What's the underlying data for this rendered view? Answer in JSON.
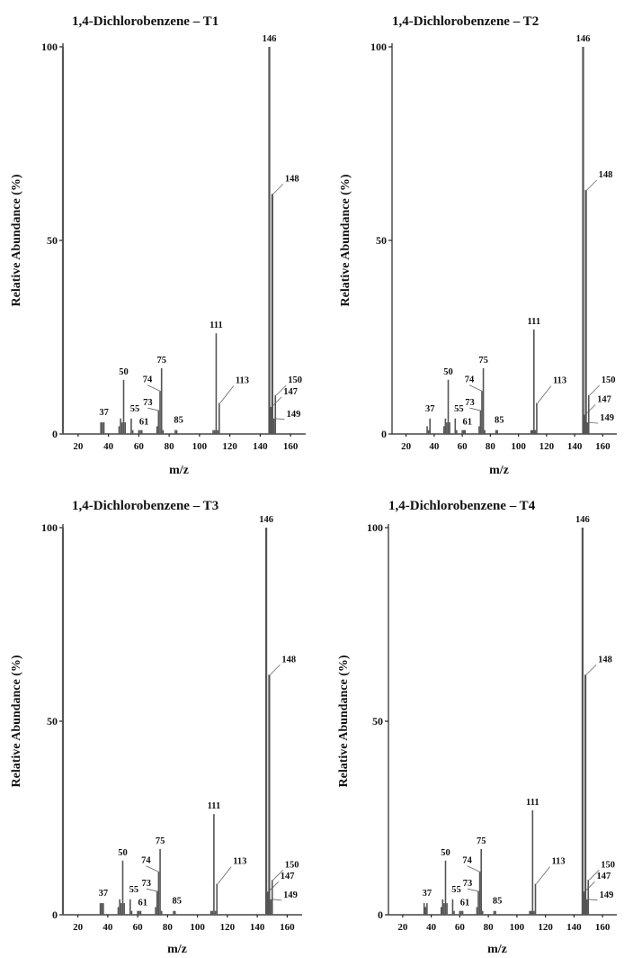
{
  "figure": {
    "panels": [
      {
        "id": "T1",
        "title": "1,4-Dichlorobenzene – T1"
      },
      {
        "id": "T2",
        "title": "1,4-Dichlorobenzene – T2"
      },
      {
        "id": "T3",
        "title": "1,4-Dichlorobenzene – T3"
      },
      {
        "id": "T4",
        "title": "1,4-Dichlorobenzene – T4"
      }
    ]
  },
  "chart_data": [
    {
      "type": "bar",
      "title": "1,4-Dichlorobenzene – T1",
      "xlabel": "m/z",
      "ylabel": "Relative Abundance (%)",
      "xlim": [
        10,
        170
      ],
      "ylim": [
        0,
        100
      ],
      "xticks": [
        20,
        40,
        60,
        80,
        100,
        120,
        140,
        160
      ],
      "yticks": [
        0,
        50,
        100
      ],
      "peaks": [
        {
          "mz": 10,
          "value": 100
        },
        {
          "mz": 35,
          "value": 3
        },
        {
          "mz": 36,
          "value": 3
        },
        {
          "mz": 37,
          "value": 3,
          "label": "37"
        },
        {
          "mz": 47,
          "value": 2
        },
        {
          "mz": 48,
          "value": 4
        },
        {
          "mz": 49,
          "value": 3
        },
        {
          "mz": 50,
          "value": 14,
          "label": "50"
        },
        {
          "mz": 51,
          "value": 3
        },
        {
          "mz": 55,
          "value": 4,
          "label": "55"
        },
        {
          "mz": 56,
          "value": 1
        },
        {
          "mz": 60,
          "value": 1
        },
        {
          "mz": 61,
          "value": 1,
          "label": "61"
        },
        {
          "mz": 62,
          "value": 1
        },
        {
          "mz": 72,
          "value": 2
        },
        {
          "mz": 73,
          "value": 6,
          "label": "73"
        },
        {
          "mz": 74,
          "value": 11,
          "label": "74"
        },
        {
          "mz": 75,
          "value": 17,
          "label": "75"
        },
        {
          "mz": 76,
          "value": 1
        },
        {
          "mz": 84,
          "value": 1
        },
        {
          "mz": 85,
          "value": 1,
          "label": "85"
        },
        {
          "mz": 109,
          "value": 1
        },
        {
          "mz": 110,
          "value": 1
        },
        {
          "mz": 111,
          "value": 26,
          "label": "111"
        },
        {
          "mz": 112,
          "value": 1
        },
        {
          "mz": 113,
          "value": 8,
          "label": "113"
        },
        {
          "mz": 146,
          "value": 100,
          "label": "146"
        },
        {
          "mz": 147,
          "value": 7,
          "label": "147"
        },
        {
          "mz": 148,
          "value": 62,
          "label": "148"
        },
        {
          "mz": 149,
          "value": 4,
          "label": "149"
        },
        {
          "mz": 150,
          "value": 10,
          "label": "150"
        }
      ]
    },
    {
      "type": "bar",
      "title": "1,4-Dichlorobenzene – T2",
      "xlabel": "m/z",
      "ylabel": "Relative Abundance (%)",
      "xlim": [
        10,
        170
      ],
      "ylim": [
        0,
        100
      ],
      "xticks": [
        20,
        40,
        60,
        80,
        100,
        120,
        140,
        160
      ],
      "yticks": [
        0,
        50,
        100
      ],
      "peaks": [
        {
          "mz": 35,
          "value": 2
        },
        {
          "mz": 36,
          "value": 1
        },
        {
          "mz": 37,
          "value": 4,
          "label": "37"
        },
        {
          "mz": 47,
          "value": 2
        },
        {
          "mz": 48,
          "value": 4
        },
        {
          "mz": 49,
          "value": 3
        },
        {
          "mz": 50,
          "value": 14,
          "label": "50"
        },
        {
          "mz": 51,
          "value": 3
        },
        {
          "mz": 55,
          "value": 4,
          "label": "55"
        },
        {
          "mz": 56,
          "value": 1
        },
        {
          "mz": 60,
          "value": 1
        },
        {
          "mz": 61,
          "value": 1,
          "label": "61"
        },
        {
          "mz": 62,
          "value": 1
        },
        {
          "mz": 72,
          "value": 2
        },
        {
          "mz": 73,
          "value": 6,
          "label": "73"
        },
        {
          "mz": 74,
          "value": 11,
          "label": "74"
        },
        {
          "mz": 75,
          "value": 17,
          "label": "75"
        },
        {
          "mz": 76,
          "value": 1
        },
        {
          "mz": 84,
          "value": 1
        },
        {
          "mz": 85,
          "value": 1,
          "label": "85"
        },
        {
          "mz": 109,
          "value": 1
        },
        {
          "mz": 110,
          "value": 1
        },
        {
          "mz": 111,
          "value": 27,
          "label": "111"
        },
        {
          "mz": 112,
          "value": 1
        },
        {
          "mz": 113,
          "value": 8,
          "label": "113"
        },
        {
          "mz": 146,
          "value": 100,
          "label": "146"
        },
        {
          "mz": 147,
          "value": 5,
          "label": "147"
        },
        {
          "mz": 148,
          "value": 63,
          "label": "148"
        },
        {
          "mz": 149,
          "value": 3,
          "label": "149"
        },
        {
          "mz": 150,
          "value": 10,
          "label": "150"
        }
      ]
    },
    {
      "type": "bar",
      "title": "1,4-Dichlorobenzene – T3",
      "xlabel": "m/z",
      "ylabel": "Relative Abundance (%)",
      "xlim": [
        10,
        170
      ],
      "ylim": [
        0,
        100
      ],
      "xticks": [
        20,
        40,
        60,
        80,
        100,
        120,
        140,
        160
      ],
      "yticks": [
        0,
        50,
        100
      ],
      "peaks": [
        {
          "mz": 10,
          "value": 100
        },
        {
          "mz": 35,
          "value": 3
        },
        {
          "mz": 36,
          "value": 3
        },
        {
          "mz": 37,
          "value": 3,
          "label": "37"
        },
        {
          "mz": 47,
          "value": 2
        },
        {
          "mz": 48,
          "value": 4
        },
        {
          "mz": 49,
          "value": 3
        },
        {
          "mz": 50,
          "value": 14,
          "label": "50"
        },
        {
          "mz": 51,
          "value": 3
        },
        {
          "mz": 55,
          "value": 4,
          "label": "55"
        },
        {
          "mz": 56,
          "value": 1
        },
        {
          "mz": 60,
          "value": 1
        },
        {
          "mz": 61,
          "value": 1,
          "label": "61"
        },
        {
          "mz": 62,
          "value": 1
        },
        {
          "mz": 72,
          "value": 2
        },
        {
          "mz": 73,
          "value": 6,
          "label": "73"
        },
        {
          "mz": 74,
          "value": 11,
          "label": "74"
        },
        {
          "mz": 75,
          "value": 17,
          "label": "75"
        },
        {
          "mz": 76,
          "value": 1
        },
        {
          "mz": 84,
          "value": 1
        },
        {
          "mz": 85,
          "value": 1,
          "label": "85"
        },
        {
          "mz": 109,
          "value": 1
        },
        {
          "mz": 110,
          "value": 1
        },
        {
          "mz": 111,
          "value": 26,
          "label": "111"
        },
        {
          "mz": 112,
          "value": 1
        },
        {
          "mz": 113,
          "value": 8,
          "label": "113"
        },
        {
          "mz": 146,
          "value": 100,
          "label": "146"
        },
        {
          "mz": 147,
          "value": 6,
          "label": "147"
        },
        {
          "mz": 148,
          "value": 62,
          "label": "148"
        },
        {
          "mz": 149,
          "value": 4,
          "label": "149"
        },
        {
          "mz": 150,
          "value": 9,
          "label": "150"
        }
      ]
    },
    {
      "type": "bar",
      "title": "1,4-Dichlorobenzene – T4",
      "xlabel": "m/z",
      "ylabel": "Relative Abundance (%)",
      "xlim": [
        10,
        170
      ],
      "ylim": [
        0,
        100
      ],
      "xticks": [
        20,
        40,
        60,
        80,
        100,
        120,
        140,
        160
      ],
      "yticks": [
        0,
        50,
        100
      ],
      "peaks": [
        {
          "mz": 35,
          "value": 3
        },
        {
          "mz": 36,
          "value": 2
        },
        {
          "mz": 37,
          "value": 3,
          "label": "37"
        },
        {
          "mz": 47,
          "value": 2
        },
        {
          "mz": 48,
          "value": 4
        },
        {
          "mz": 49,
          "value": 3
        },
        {
          "mz": 50,
          "value": 14,
          "label": "50"
        },
        {
          "mz": 51,
          "value": 3
        },
        {
          "mz": 55,
          "value": 4,
          "label": "55"
        },
        {
          "mz": 56,
          "value": 1
        },
        {
          "mz": 60,
          "value": 1
        },
        {
          "mz": 61,
          "value": 1,
          "label": "61"
        },
        {
          "mz": 62,
          "value": 1
        },
        {
          "mz": 72,
          "value": 2
        },
        {
          "mz": 73,
          "value": 6,
          "label": "73"
        },
        {
          "mz": 74,
          "value": 11,
          "label": "74"
        },
        {
          "mz": 75,
          "value": 17,
          "label": "75"
        },
        {
          "mz": 76,
          "value": 1
        },
        {
          "mz": 84,
          "value": 1
        },
        {
          "mz": 85,
          "value": 1,
          "label": "85"
        },
        {
          "mz": 109,
          "value": 1
        },
        {
          "mz": 110,
          "value": 1
        },
        {
          "mz": 111,
          "value": 27,
          "label": "111"
        },
        {
          "mz": 112,
          "value": 1
        },
        {
          "mz": 113,
          "value": 8,
          "label": "113"
        },
        {
          "mz": 146,
          "value": 100,
          "label": "146"
        },
        {
          "mz": 147,
          "value": 6,
          "label": "147"
        },
        {
          "mz": 148,
          "value": 62,
          "label": "148"
        },
        {
          "mz": 149,
          "value": 4,
          "label": "149"
        },
        {
          "mz": 150,
          "value": 9,
          "label": "150"
        }
      ]
    }
  ]
}
